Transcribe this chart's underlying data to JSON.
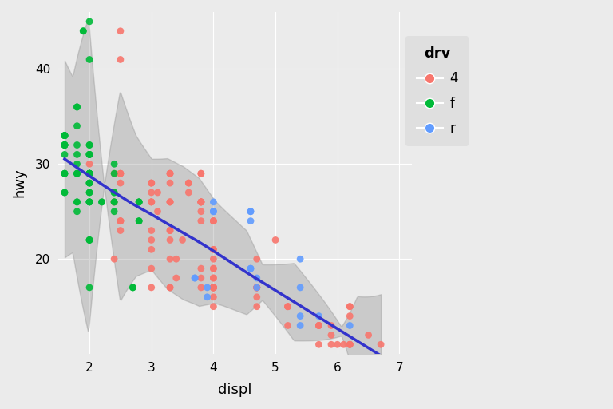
{
  "title": "",
  "xlabel": "displ",
  "ylabel": "hwy",
  "legend_title": "drv",
  "legend_labels": [
    "4",
    "f",
    "r"
  ],
  "colors": {
    "4": "#F8766D",
    "f": "#00BA38",
    "r": "#619CFF"
  },
  "bg_color": "#EBEBEB",
  "panel_bg": "#EBEBEB",
  "grid_color": "#FFFFFF",
  "smooth_color": "#3333CC",
  "smooth_alpha": 0.3,
  "xlim": [
    1.5,
    7.2
  ],
  "ylim": [
    10,
    46
  ],
  "xticks": [
    2,
    3,
    4,
    5,
    6,
    7
  ],
  "yticks": [
    20,
    30,
    40
  ],
  "point_size": 40,
  "point_alpha": 0.9,
  "legend_bg": "#DCDCDC"
}
